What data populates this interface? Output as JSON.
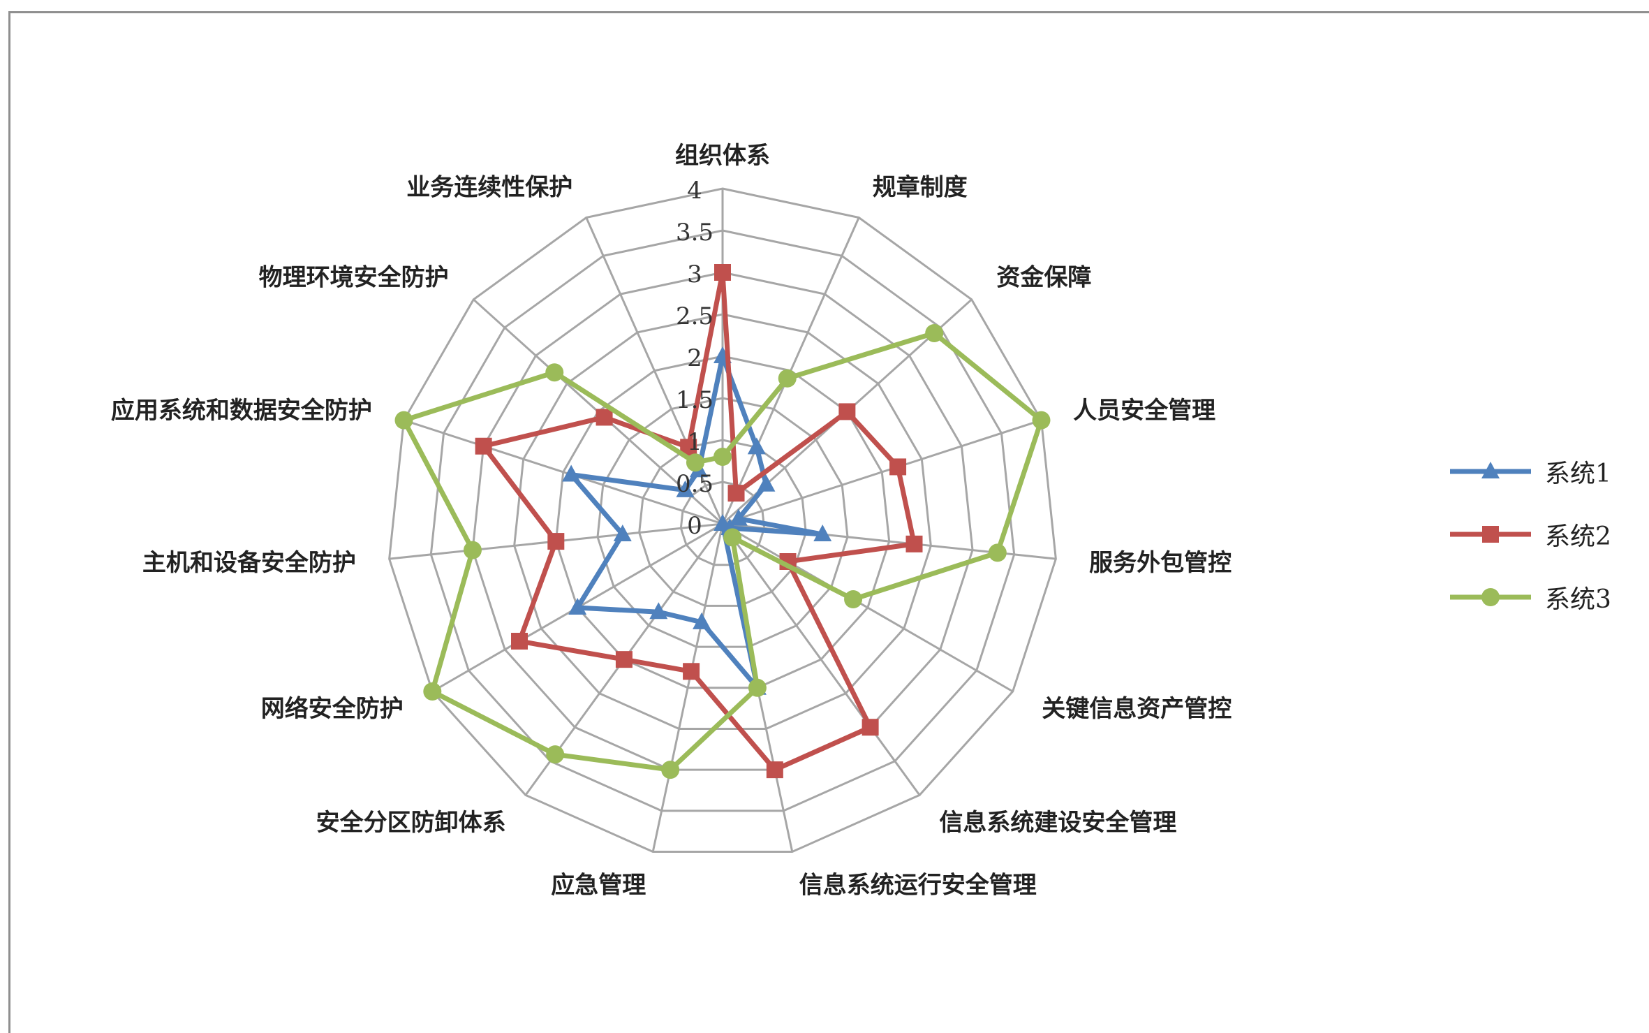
{
  "chart_data": {
    "type": "radar",
    "categories": [
      "组织体系",
      "规章制度",
      "资金保障",
      "人员安全管理",
      "服务外包管控",
      "关键信息资产管控",
      "信息系统建设安全管理",
      "信息系统运行安全管理",
      "应急管理",
      "安全分区防卸体系",
      "网络安全防护",
      "主机和设备安全防护",
      "应用系统和数据安全防护",
      "物理环境安全防护",
      "业务连续性保护"
    ],
    "ticks": [
      "0",
      "0.5",
      "1",
      "1.5",
      "2",
      "2.5",
      "3",
      "3.5",
      "4"
    ],
    "rmax": 4,
    "grid": true,
    "legend_position": "right",
    "series": [
      {
        "name": "系统1",
        "color": "#4f81bd",
        "marker": "triangle",
        "values": [
          2.0,
          1.0,
          0.7,
          0.2,
          1.2,
          0.1,
          0.0,
          2.0,
          1.2,
          1.3,
          2.0,
          1.2,
          1.9,
          0.6,
          0.7
        ]
      },
      {
        "name": "系统2",
        "color": "#c0504d",
        "marker": "square",
        "values": [
          3.0,
          0.4,
          2.0,
          2.2,
          2.3,
          0.9,
          3.0,
          3.0,
          1.8,
          2.0,
          2.8,
          2.0,
          3.0,
          1.9,
          1.0
        ]
      },
      {
        "name": "系统3",
        "color": "#9bbb59",
        "marker": "circle",
        "values": [
          0.8,
          1.9,
          3.4,
          4.0,
          3.3,
          1.8,
          0.2,
          2.0,
          3.0,
          3.4,
          4.0,
          3.0,
          4.0,
          2.7,
          0.8
        ]
      }
    ]
  },
  "legend": {
    "items": [
      {
        "label": "系统1",
        "color": "#4f81bd",
        "marker": "triangle"
      },
      {
        "label": "系统2",
        "color": "#c0504d",
        "marker": "square"
      },
      {
        "label": "系统3",
        "color": "#9bbb59",
        "marker": "circle"
      }
    ]
  }
}
